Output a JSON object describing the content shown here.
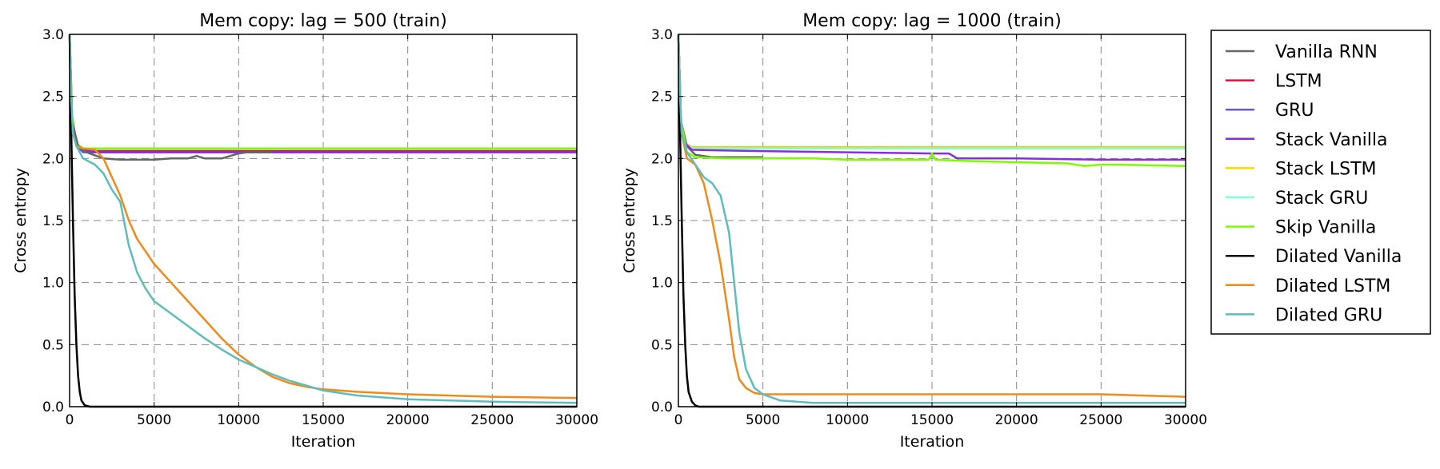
{
  "colors": {
    "Vanilla RNN": "#666666",
    "LSTM": "#dc143c",
    "GRU": "#6a5acd",
    "Stack Vanilla": "#8a2be2",
    "Stack LSTM": "#ffd700",
    "Stack GRU": "#7fffd4",
    "Skip Vanilla": "#7cfc00",
    "Dilated Vanilla": "#000000",
    "Dilated LSTM": "#f08a1c",
    "Dilated GRU": "#5fbcbc"
  },
  "legend": {
    "placement": "outside-right",
    "items": [
      "Vanilla RNN",
      "LSTM",
      "GRU",
      "Stack Vanilla",
      "Stack LSTM",
      "Stack GRU",
      "Skip Vanilla",
      "Dilated Vanilla",
      "Dilated LSTM",
      "Dilated GRU"
    ]
  },
  "chart_data": [
    {
      "type": "line",
      "title": "Mem copy: lag = 500 (train)",
      "xlabel": "Iteration",
      "ylabel": "Cross entropy",
      "xlim": [
        0,
        30000
      ],
      "ylim": [
        0,
        3.0
      ],
      "xticks": [
        0,
        5000,
        10000,
        15000,
        20000,
        25000,
        30000
      ],
      "yticks": [
        0.0,
        0.5,
        1.0,
        1.5,
        2.0,
        2.5,
        3.0
      ],
      "grid": true,
      "series": [
        {
          "name": "LSTM",
          "x": [
            0,
            150,
            400,
            800,
            30000
          ],
          "y": [
            3.0,
            2.3,
            2.1,
            2.06,
            2.06
          ]
        },
        {
          "name": "GRU",
          "x": [
            0,
            150,
            400,
            800,
            30000
          ],
          "y": [
            3.0,
            2.3,
            2.1,
            2.05,
            2.05
          ]
        },
        {
          "name": "Stack LSTM",
          "x": [
            0,
            150,
            400,
            800,
            30000
          ],
          "y": [
            3.0,
            2.3,
            2.12,
            2.08,
            2.08
          ]
        },
        {
          "name": "Stack GRU",
          "x": [
            0,
            150,
            400,
            800,
            30000
          ],
          "y": [
            3.0,
            2.3,
            2.12,
            2.08,
            2.08
          ]
        },
        {
          "name": "Stack Vanilla",
          "x": [
            0,
            150,
            400,
            800,
            1500,
            30000
          ],
          "y": [
            3.0,
            2.3,
            2.12,
            2.07,
            2.05,
            2.05
          ]
        },
        {
          "name": "Skip Vanilla",
          "x": [
            0,
            150,
            400,
            800,
            30000
          ],
          "y": [
            3.0,
            2.35,
            2.12,
            2.08,
            2.08
          ]
        },
        {
          "name": "Vanilla RNN",
          "x": [
            0,
            150,
            500,
            1000,
            2000,
            3000,
            4000,
            5000,
            6000,
            7000,
            7500,
            8000,
            9000,
            9500,
            10000,
            10500,
            11000,
            12000
          ],
          "y": [
            3.0,
            2.3,
            2.1,
            2.05,
            2.0,
            1.99,
            1.99,
            1.99,
            2.0,
            2.0,
            2.02,
            2.0,
            2.0,
            2.02,
            2.04,
            2.05,
            2.05,
            2.05
          ]
        },
        {
          "name": "Dilated Vanilla",
          "x": [
            0,
            100,
            200,
            300,
            400,
            500,
            600,
            700,
            900,
            1200,
            30000
          ],
          "y": [
            3.0,
            2.2,
            1.5,
            0.9,
            0.5,
            0.25,
            0.12,
            0.05,
            0.01,
            0.0,
            0.0
          ]
        },
        {
          "name": "Dilated LSTM",
          "x": [
            0,
            100,
            200,
            400,
            800,
            1500,
            2000,
            2500,
            3000,
            3500,
            4000,
            5000,
            6000,
            7000,
            8000,
            9000,
            10000,
            11000,
            12000,
            13000,
            14000,
            15000,
            17000,
            20000,
            25000,
            30000
          ],
          "y": [
            3.0,
            2.5,
            2.2,
            2.1,
            2.08,
            2.07,
            2.0,
            1.85,
            1.7,
            1.5,
            1.35,
            1.15,
            1.0,
            0.85,
            0.7,
            0.55,
            0.42,
            0.32,
            0.24,
            0.19,
            0.16,
            0.14,
            0.12,
            0.1,
            0.08,
            0.07
          ]
        },
        {
          "name": "Dilated GRU",
          "x": [
            0,
            100,
            200,
            400,
            800,
            1500,
            2000,
            2500,
            3000,
            3500,
            4000,
            4500,
            5000,
            6000,
            7000,
            8000,
            9000,
            10000,
            11000,
            12000,
            13000,
            14000,
            15000,
            17000,
            20000,
            25000,
            30000
          ],
          "y": [
            3.0,
            2.5,
            2.2,
            2.1,
            2.0,
            1.95,
            1.88,
            1.75,
            1.65,
            1.3,
            1.08,
            0.95,
            0.85,
            0.75,
            0.65,
            0.55,
            0.46,
            0.38,
            0.32,
            0.26,
            0.21,
            0.17,
            0.13,
            0.09,
            0.06,
            0.04,
            0.03
          ]
        }
      ]
    },
    {
      "type": "line",
      "title": "Mem copy: lag = 1000 (train)",
      "xlabel": "Iteration",
      "ylabel": "Cross entropy",
      "xlim": [
        0,
        30000
      ],
      "ylim": [
        0,
        3.0
      ],
      "xticks": [
        0,
        5000,
        10000,
        15000,
        20000,
        25000,
        30000
      ],
      "yticks": [
        0.0,
        0.5,
        1.0,
        1.5,
        2.0,
        2.5,
        3.0
      ],
      "grid": true,
      "series": [
        {
          "name": "LSTM",
          "x": [
            0,
            150,
            400,
            800,
            30000
          ],
          "y": [
            3.0,
            2.3,
            2.12,
            2.09,
            2.09
          ]
        },
        {
          "name": "GRU",
          "x": [
            0,
            150,
            400,
            800,
            30000
          ],
          "y": [
            3.0,
            2.3,
            2.12,
            2.09,
            2.09
          ]
        },
        {
          "name": "Stack LSTM",
          "x": [
            0,
            150,
            400,
            800,
            30000
          ],
          "y": [
            3.0,
            2.3,
            2.12,
            2.09,
            2.09
          ]
        },
        {
          "name": "Stack GRU",
          "x": [
            0,
            150,
            400,
            800,
            30000
          ],
          "y": [
            3.0,
            2.3,
            2.12,
            2.08,
            2.08
          ]
        },
        {
          "name": "Vanilla RNN",
          "x": [
            0,
            150,
            500,
            1000,
            2000,
            3000,
            4000,
            5000
          ],
          "y": [
            3.0,
            2.3,
            2.1,
            2.03,
            2.01,
            2.01,
            2.01,
            2.01
          ]
        },
        {
          "name": "Stack Vanilla",
          "x": [
            0,
            150,
            400,
            800,
            4500,
            10000,
            15000,
            16000,
            16500,
            20000,
            25000,
            30000
          ],
          "y": [
            3.0,
            2.3,
            2.12,
            2.07,
            2.06,
            2.05,
            2.04,
            2.04,
            2.0,
            2.0,
            1.99,
            1.99
          ]
        },
        {
          "name": "Skip Vanilla",
          "x": [
            0,
            150,
            500,
            1000,
            3000,
            5000,
            8000,
            10000,
            14800,
            15000,
            15200,
            17000,
            20000,
            23000,
            24000,
            25000,
            26000,
            30000
          ],
          "y": [
            3.0,
            2.3,
            2.05,
            2.01,
            2.0,
            2.0,
            2.0,
            1.99,
            1.99,
            2.04,
            1.99,
            1.98,
            1.97,
            1.96,
            1.94,
            1.95,
            1.95,
            1.94
          ]
        },
        {
          "name": "Dilated Vanilla",
          "x": [
            0,
            100,
            200,
            300,
            400,
            500,
            600,
            800,
            1000,
            1200,
            1500,
            30000
          ],
          "y": [
            3.0,
            2.2,
            1.5,
            0.9,
            0.5,
            0.25,
            0.12,
            0.04,
            0.01,
            0.0,
            0.0,
            0.0
          ]
        },
        {
          "name": "Dilated LSTM",
          "x": [
            0,
            100,
            200,
            500,
            1000,
            1500,
            2000,
            2500,
            3000,
            3300,
            3600,
            4000,
            4500,
            5000,
            7000,
            10000,
            15000,
            20000,
            25000,
            30000
          ],
          "y": [
            3.0,
            2.5,
            2.2,
            2.0,
            1.95,
            1.8,
            1.5,
            1.15,
            0.7,
            0.4,
            0.22,
            0.15,
            0.11,
            0.1,
            0.1,
            0.1,
            0.1,
            0.1,
            0.1,
            0.08
          ]
        },
        {
          "name": "Dilated GRU",
          "x": [
            0,
            100,
            200,
            500,
            1000,
            1500,
            2000,
            2500,
            3000,
            3300,
            3600,
            4000,
            4500,
            5000,
            6000,
            8000,
            10000,
            15000,
            20000,
            25000,
            30000
          ],
          "y": [
            3.0,
            2.5,
            2.2,
            2.05,
            1.95,
            1.85,
            1.8,
            1.7,
            1.4,
            1.0,
            0.6,
            0.3,
            0.15,
            0.1,
            0.05,
            0.03,
            0.03,
            0.03,
            0.03,
            0.03,
            0.03
          ]
        }
      ]
    }
  ]
}
